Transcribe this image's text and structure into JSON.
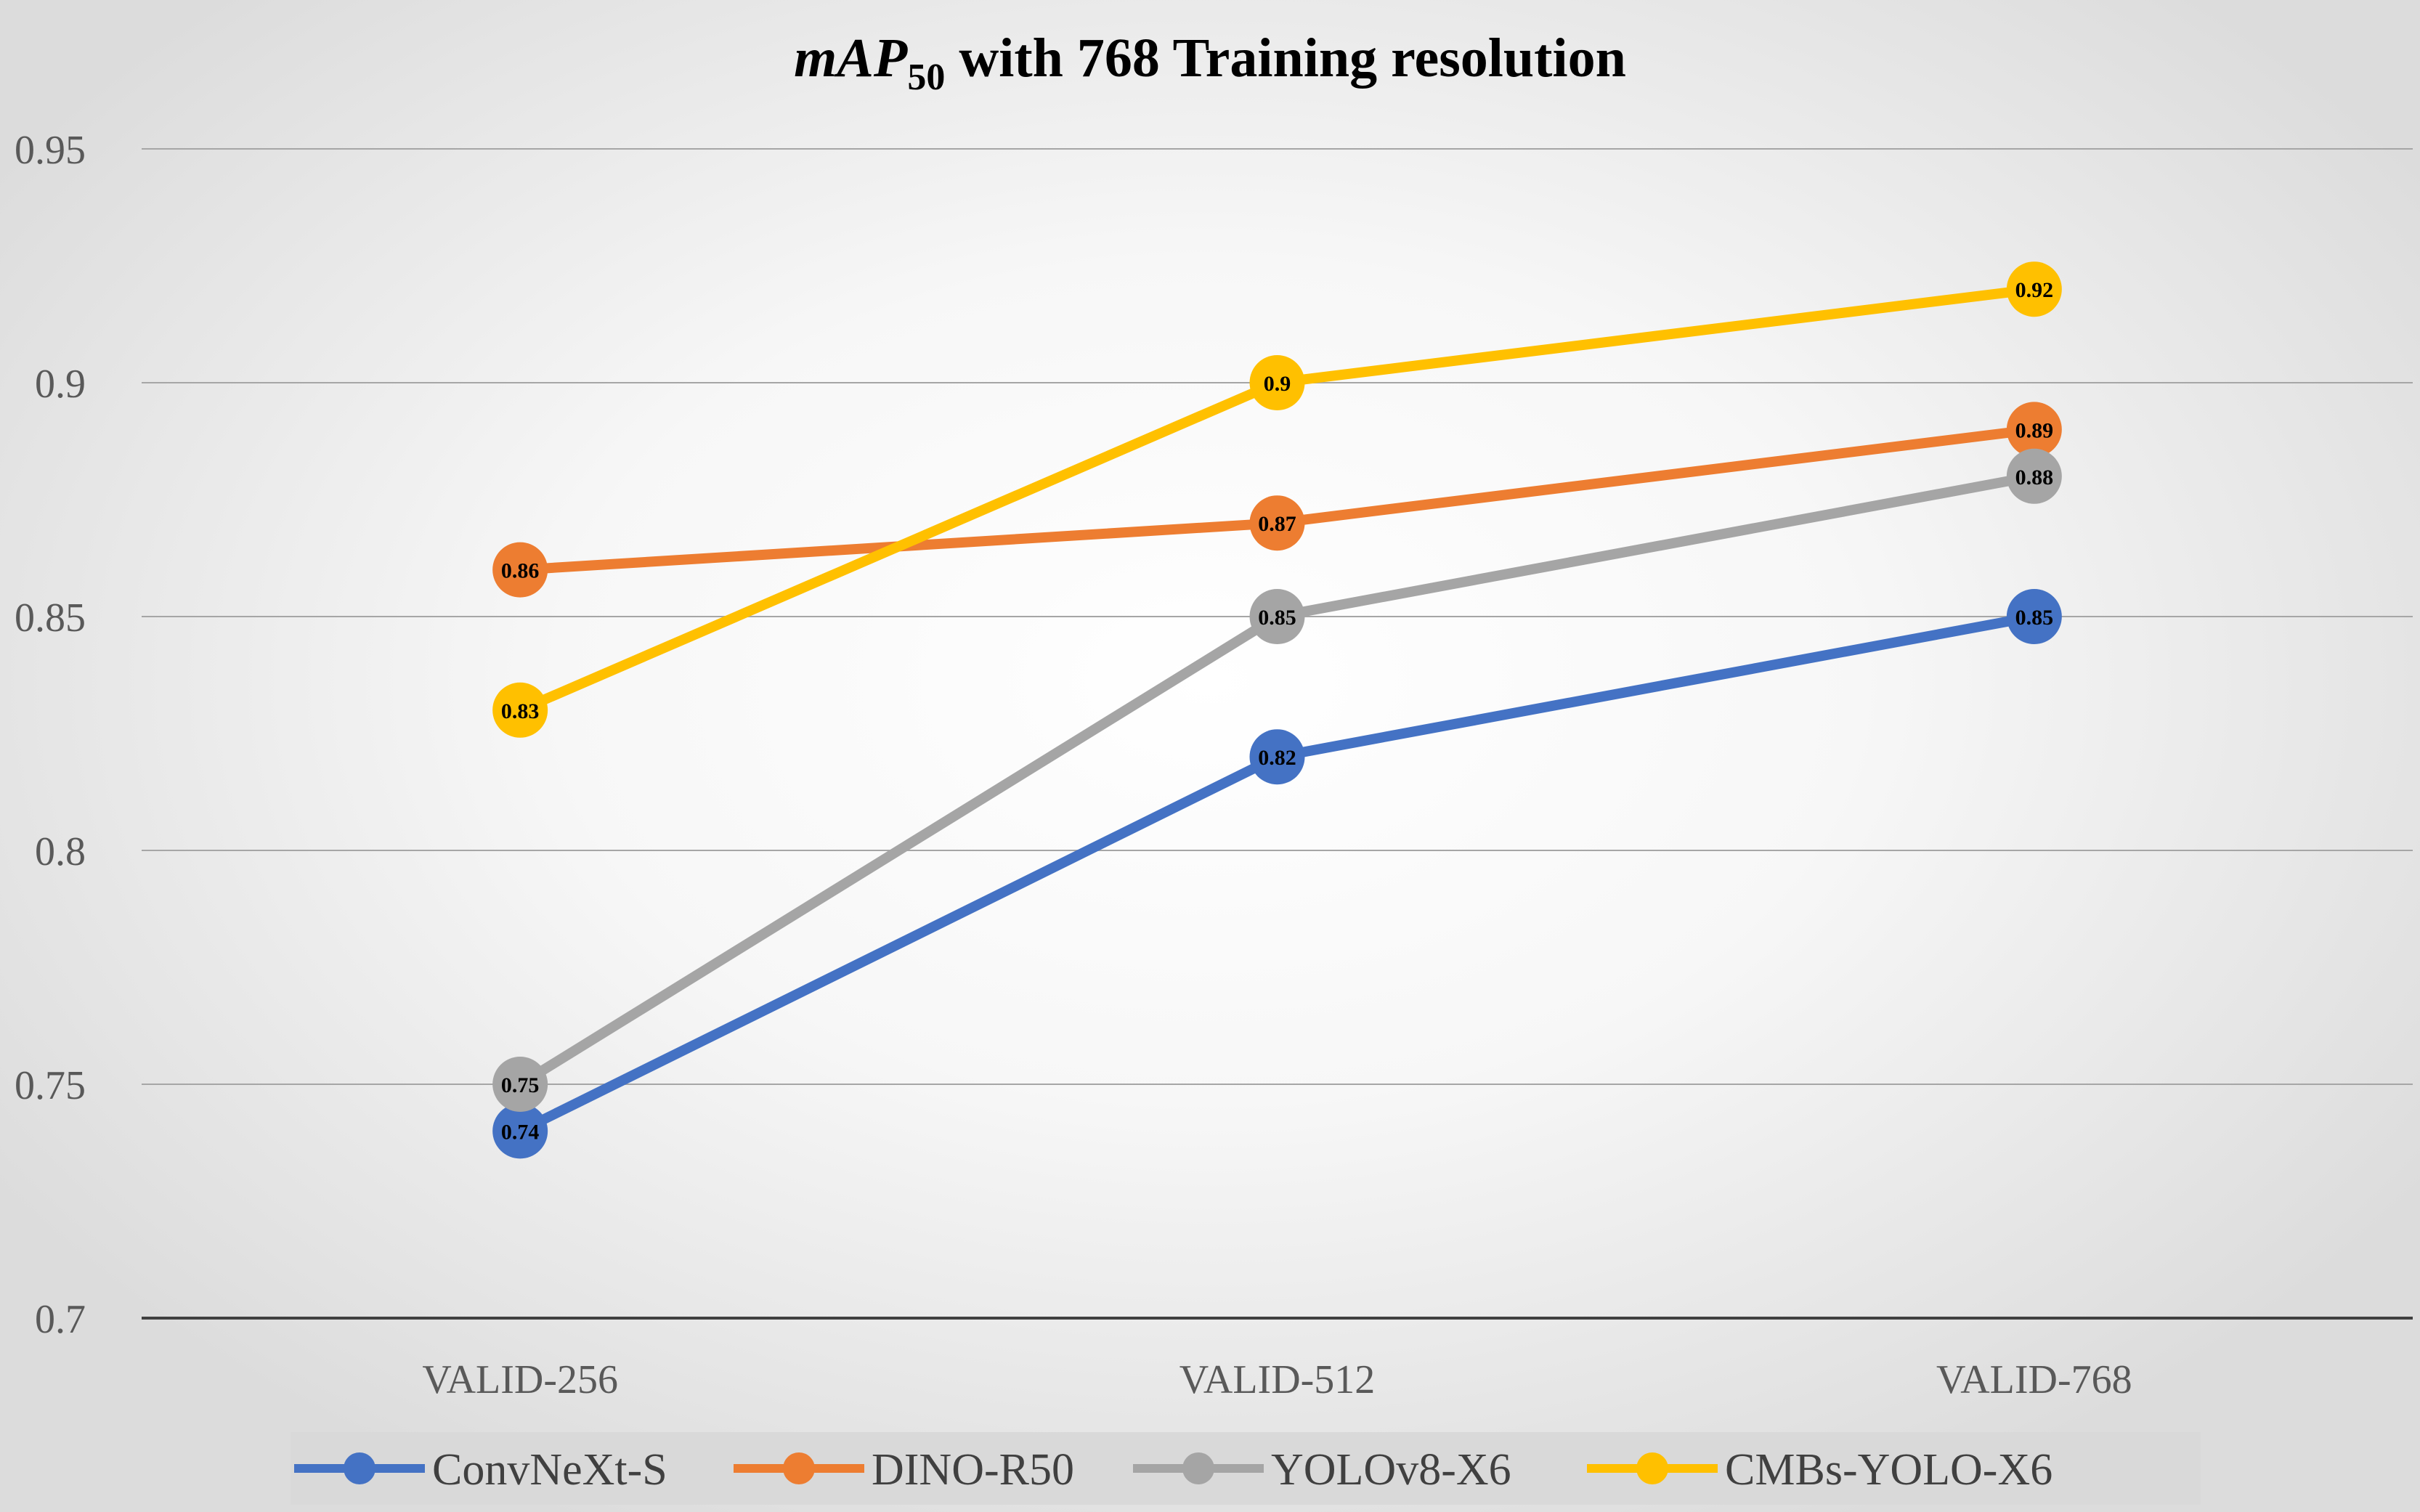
{
  "chart_data": {
    "type": "line",
    "title": {
      "italic": "mAP",
      "subscript": "50",
      "rest": " with 768 Training resolution"
    },
    "categories": [
      "VALID-256",
      "VALID-512",
      "VALID-768"
    ],
    "ylim": [
      0.7,
      0.95
    ],
    "yticks": [
      "0.7",
      "0.75",
      "0.8",
      "0.85",
      "0.9",
      "0.95"
    ],
    "grid": true,
    "legend": "bottom",
    "series": [
      {
        "name": "ConvNeXt-S",
        "color": "#4472C4",
        "values": [
          0.74,
          0.82,
          0.85
        ],
        "labels": [
          "0.74",
          "0.82",
          "0.85"
        ]
      },
      {
        "name": "DINO-R50",
        "color": "#ED7D31",
        "values": [
          0.86,
          0.87,
          0.89
        ],
        "labels": [
          "0.86",
          "0.87",
          "0.89"
        ]
      },
      {
        "name": "YOLOv8-X6",
        "color": "#A5A5A5",
        "values": [
          0.75,
          0.85,
          0.88
        ],
        "labels": [
          "0.75",
          "0.85",
          "0.88"
        ]
      },
      {
        "name": "CMBs-YOLO-X6",
        "color": "#FFC000",
        "values": [
          0.83,
          0.9,
          0.92
        ],
        "labels": [
          "0.83",
          "0.9",
          "0.92"
        ]
      }
    ]
  }
}
